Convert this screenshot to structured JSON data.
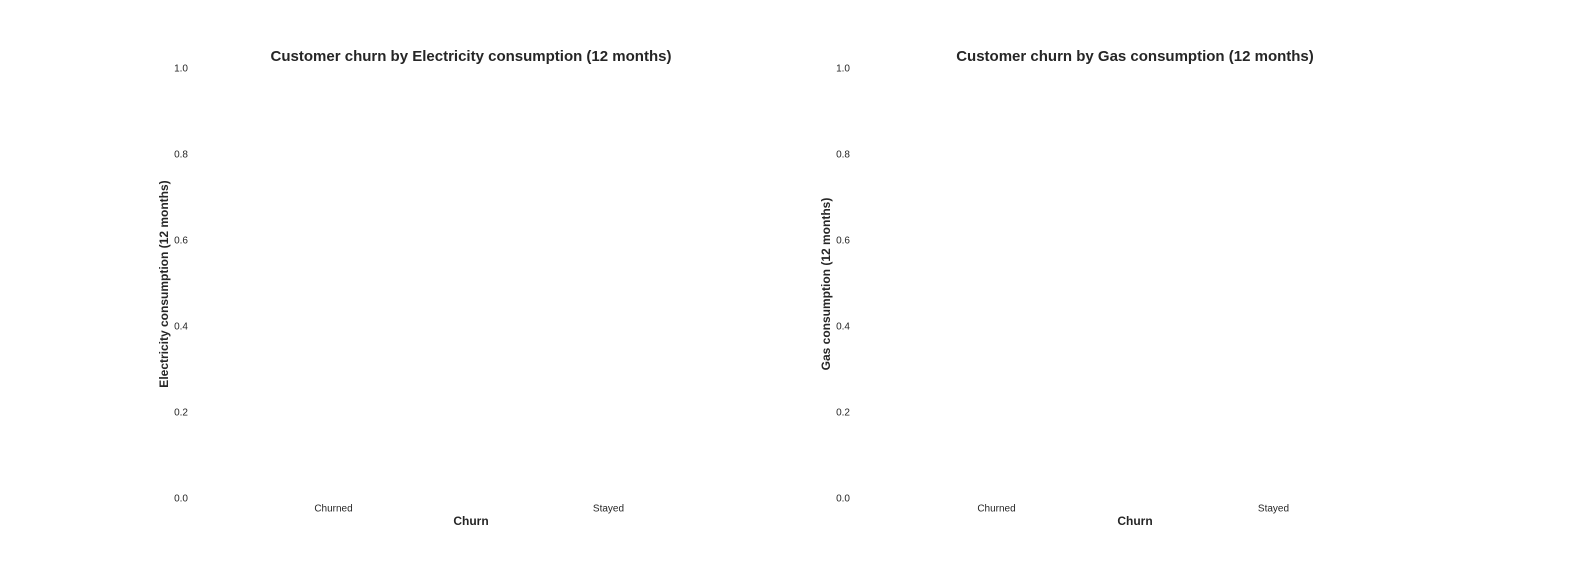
{
  "chart_data": [
    {
      "type": "bar",
      "title": "Customer churn by Electricity consumption (12 months)",
      "x_label": "Churn",
      "y_label": "Electricity consumption (12 months)",
      "categories": [
        "Churned",
        "Stayed"
      ],
      "ylim": [
        0,
        1
      ],
      "yticks": [
        {
          "value": 0,
          "label": "0.0"
        },
        0.2,
        0.4,
        0.6,
        0.8,
        {
          "value": 1,
          "label": "1.0"
        }
      ]
    },
    {
      "type": "bar",
      "title": "Customer churn by Gas consumption (12 months)",
      "x_label": "Churn",
      "y_label": "Gas consumption (12 months)",
      "categories": [
        "Churned",
        "Stayed"
      ],
      "ylim": [
        0,
        1
      ],
      "yticks": [
        {
          "value": 0,
          "label": "0.0"
        },
        0.2,
        0.4,
        0.6,
        0.8,
        {
          "value": 1,
          "label": "1.0"
        }
      ]
    }
  ]
}
